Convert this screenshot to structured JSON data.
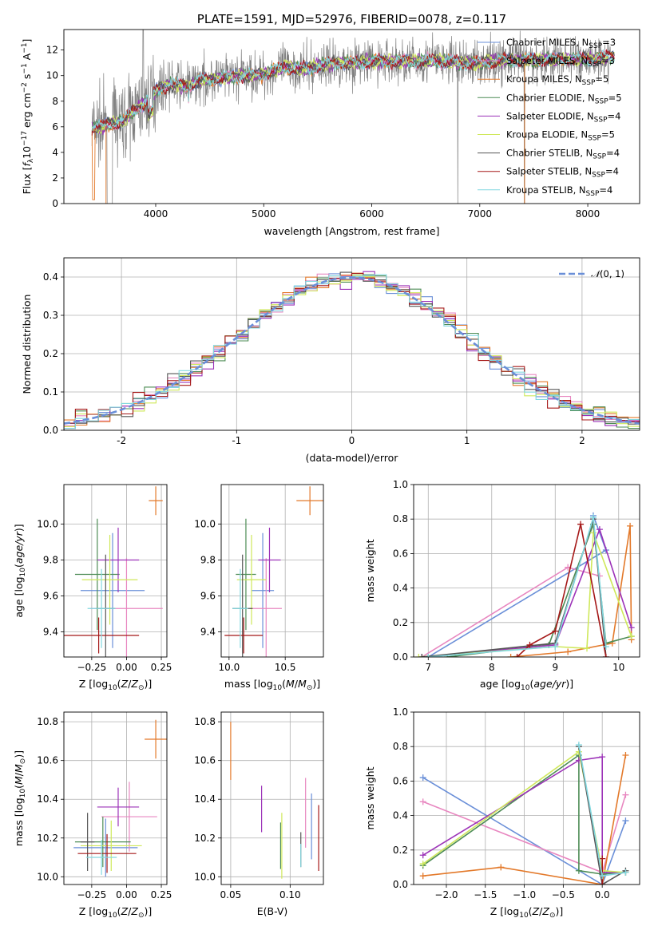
{
  "palette": {
    "Chabrier MILES": "#6a8fd8",
    "Salpeter MILES": "#e887c0",
    "Kroupa MILES": "#e3792a",
    "Chabrier ELODIE": "#4d8c55",
    "Salpeter ELODIE": "#9c33b8",
    "Kroupa ELODIE": "#cfe85a",
    "Chabrier STELIB": "#555555",
    "Salpeter STELIB": "#a51818",
    "Kroupa STELIB": "#83d8e0",
    "data": "#808080"
  },
  "chart_data": [
    {
      "id": "spectrum",
      "type": "line",
      "title": "PLATE=1591, MJD=52976, FIBERID=0078, z=0.117",
      "xlabel": "wavelength [Angstrom, rest frame]",
      "ylabel": "Flux [f_λ10^-17 erg cm^-2 s^-1 A^-1]",
      "xlim": [
        3150,
        8480
      ],
      "ylim": [
        0,
        13.6
      ],
      "xticks": [
        4000,
        5000,
        6000,
        7000,
        8000
      ],
      "yticks": [
        0,
        2,
        4,
        6,
        8,
        10,
        12
      ],
      "grid": false,
      "legend_position": "upper right",
      "legend": [
        {
          "name": "Chabrier MILES",
          "nssp": "3"
        },
        {
          "name": "Salpeter MILES",
          "nssp": "3"
        },
        {
          "name": "Kroupa MILES",
          "nssp": "5"
        },
        {
          "name": "Chabrier ELODIE",
          "nssp": "5"
        },
        {
          "name": "Salpeter ELODIE",
          "nssp": "4"
        },
        {
          "name": "Kroupa ELODIE",
          "nssp": "5"
        },
        {
          "name": "Chabrier STELIB",
          "nssp": "4"
        },
        {
          "name": "Salpeter STELIB",
          "nssp": "4"
        },
        {
          "name": "Kroupa STELIB",
          "nssp": "4"
        }
      ],
      "continuum": [
        [
          3400,
          5.9
        ],
        [
          3500,
          6.0
        ],
        [
          3600,
          6.3
        ],
        [
          3700,
          6.4
        ],
        [
          3800,
          7.3
        ],
        [
          3900,
          7.8
        ],
        [
          4000,
          8.8
        ],
        [
          4100,
          9.3
        ],
        [
          4300,
          9.2
        ],
        [
          4400,
          9.6
        ],
        [
          4600,
          9.8
        ],
        [
          4800,
          10.0
        ],
        [
          5000,
          10.1
        ],
        [
          5200,
          10.7
        ],
        [
          5400,
          10.5
        ],
        [
          5600,
          10.9
        ],
        [
          5800,
          11.0
        ],
        [
          6000,
          11.1
        ],
        [
          6200,
          11.1
        ],
        [
          6400,
          11.1
        ],
        [
          6600,
          11.2
        ],
        [
          6800,
          11.0
        ],
        [
          7000,
          11.0
        ],
        [
          7200,
          11.2
        ],
        [
          7500,
          11.2
        ],
        [
          7800,
          11.3
        ],
        [
          8000,
          11.3
        ],
        [
          8200,
          11.5
        ]
      ],
      "data_range": [
        3410,
        8210
      ],
      "model_range": [
        3410,
        8250
      ]
    },
    {
      "id": "residuals",
      "type": "histogram",
      "xlabel": "(data-model)/error",
      "ylabel": "Normed distribution",
      "xlim": [
        -2.5,
        2.5
      ],
      "ylim": [
        0,
        0.45
      ],
      "xticks": [
        -2,
        -1,
        0,
        1,
        2
      ],
      "yticks": [
        0.0,
        0.1,
        0.2,
        0.3,
        0.4
      ],
      "grid": true,
      "legend_position": "upper right",
      "legend_label": "N(0,1)",
      "bin_width": 0.1
    },
    {
      "id": "age-vs-Z",
      "type": "errorbar",
      "xlabel": "Z [log10(Z/Z☉)]",
      "ylabel": "age  [log10(age/yr)]",
      "xlim": [
        -0.45,
        0.29
      ],
      "ylim": [
        9.26,
        10.22
      ],
      "xticks": [
        -0.25,
        0.0,
        0.25
      ],
      "xticklabels": [
        "−0.25",
        "0.00",
        "0.25"
      ],
      "yticks": [
        9.4,
        9.6,
        9.8,
        10.0
      ],
      "grid": true,
      "points": [
        {
          "model": "Chabrier MILES",
          "x": -0.1,
          "xe": 0.23,
          "y": 9.63,
          "ye": 0.32
        },
        {
          "model": "Salpeter MILES",
          "x": 0.0,
          "xe": 0.26,
          "y": 9.53,
          "ye": 0.28
        },
        {
          "model": "Kroupa MILES",
          "x": 0.21,
          "xe": 0.05,
          "y": 10.13,
          "ye": 0.08
        },
        {
          "model": "Chabrier ELODIE",
          "x": -0.21,
          "xe": 0.16,
          "y": 9.72,
          "ye": 0.31
        },
        {
          "model": "Salpeter ELODIE",
          "x": -0.06,
          "xe": 0.15,
          "y": 9.8,
          "ye": 0.18
        },
        {
          "model": "Kroupa ELODIE",
          "x": -0.12,
          "xe": 0.2,
          "y": 9.69,
          "ye": 0.25
        },
        {
          "model": "Chabrier STELIB",
          "x": -0.15,
          "xe": 0.07,
          "y": 9.53,
          "ye": 0.3
        },
        {
          "model": "Salpeter STELIB",
          "x": -0.2,
          "xe": 0.29,
          "y": 9.38,
          "ye": 0.1
        },
        {
          "model": "Kroupa STELIB",
          "x": -0.18,
          "xe": 0.1,
          "y": 9.53,
          "ye": 0.22
        }
      ]
    },
    {
      "id": "age-vs-mass",
      "type": "errorbar",
      "xlabel": "mass [log10(M/M☉)]",
      "xlim": [
        9.93,
        10.84
      ],
      "ylim": [
        9.26,
        10.22
      ],
      "xticks": [
        10.0,
        10.5
      ],
      "xticklabels": [
        "10.0",
        "10.5"
      ],
      "yticks": [
        9.4,
        9.6,
        9.8,
        10.0
      ],
      "grid": true,
      "points": [
        {
          "model": "Chabrier MILES",
          "x": 10.3,
          "xe": 0.1,
          "y": 9.63,
          "ye": 0.32
        },
        {
          "model": "Salpeter MILES",
          "x": 10.33,
          "xe": 0.14,
          "y": 9.53,
          "ye": 0.28
        },
        {
          "model": "Kroupa MILES",
          "x": 10.72,
          "xe": 0.12,
          "y": 10.13,
          "ye": 0.08
        },
        {
          "model": "Chabrier ELODIE",
          "x": 10.15,
          "xe": 0.09,
          "y": 9.72,
          "ye": 0.31
        },
        {
          "model": "Salpeter ELODIE",
          "x": 10.36,
          "xe": 0.1,
          "y": 9.8,
          "ye": 0.18
        },
        {
          "model": "Kroupa ELODIE",
          "x": 10.2,
          "xe": 0.13,
          "y": 9.69,
          "ye": 0.25
        },
        {
          "model": "Chabrier STELIB",
          "x": 10.12,
          "xe": 0.09,
          "y": 9.53,
          "ye": 0.3
        },
        {
          "model": "Salpeter STELIB",
          "x": 10.13,
          "xe": 0.17,
          "y": 9.38,
          "ye": 0.1
        },
        {
          "model": "Kroupa STELIB",
          "x": 10.1,
          "xe": 0.07,
          "y": 9.53,
          "ye": 0.22
        }
      ]
    },
    {
      "id": "mass-weight-vs-age",
      "type": "line",
      "xlabel": "age  [log10(age/yr)]",
      "ylabel": "mass weight",
      "xlim": [
        6.77,
        10.33
      ],
      "ylim": [
        0,
        1
      ],
      "xticks": [
        7,
        8,
        9,
        10
      ],
      "yticks": [
        0.0,
        0.2,
        0.4,
        0.6,
        0.8,
        1.0
      ],
      "grid": true,
      "series": [
        {
          "model": "Chabrier MILES",
          "points": [
            [
              7.0,
              0.0
            ],
            [
              9.8,
              0.62
            ],
            [
              9.6,
              0.82
            ]
          ]
        },
        {
          "model": "Salpeter MILES",
          "points": [
            [
              6.9,
              0.0
            ],
            [
              9.2,
              0.52
            ],
            [
              9.7,
              0.47
            ]
          ]
        },
        {
          "model": "Kroupa MILES",
          "points": [
            [
              8.3,
              0.0
            ],
            [
              9.2,
              0.03
            ],
            [
              9.9,
              0.08
            ],
            [
              10.18,
              0.76
            ],
            [
              10.2,
              0.1
            ]
          ]
        },
        {
          "model": "Chabrier ELODIE",
          "points": [
            [
              7.3,
              0.0
            ],
            [
              8.9,
              0.07
            ],
            [
              9.6,
              0.77
            ],
            [
              9.8,
              0.08
            ],
            [
              10.2,
              0.12
            ]
          ]
        },
        {
          "model": "Salpeter ELODIE",
          "points": [
            [
              6.9,
              0.0
            ],
            [
              9.0,
              0.07
            ],
            [
              9.7,
              0.74
            ],
            [
              10.2,
              0.17
            ]
          ]
        },
        {
          "model": "Kroupa ELODIE",
          "points": [
            [
              6.85,
              0.0
            ],
            [
              9.0,
              0.06
            ],
            [
              9.5,
              0.05
            ],
            [
              9.6,
              0.72
            ],
            [
              10.2,
              0.12
            ]
          ]
        },
        {
          "model": "Chabrier STELIB",
          "points": [
            [
              6.9,
              0.0
            ],
            [
              9.0,
              0.08
            ],
            [
              9.6,
              0.8
            ],
            [
              9.8,
              0.0
            ]
          ]
        },
        {
          "model": "Salpeter STELIB",
          "points": [
            [
              8.4,
              0.0
            ],
            [
              8.6,
              0.07
            ],
            [
              9.0,
              0.15
            ],
            [
              9.4,
              0.77
            ],
            [
              9.8,
              0.0
            ]
          ]
        },
        {
          "model": "Kroupa STELIB",
          "points": [
            [
              7.0,
              0.0
            ],
            [
              9.0,
              0.06
            ],
            [
              9.6,
              0.81
            ],
            [
              9.8,
              0.06
            ]
          ]
        }
      ]
    },
    {
      "id": "mass-vs-Z",
      "type": "errorbar",
      "xlabel": "Z [log10(Z/Z☉)]",
      "ylabel": "mass [log10(M/M☉)]",
      "xlim": [
        -0.45,
        0.29
      ],
      "ylim": [
        9.96,
        10.85
      ],
      "xticks": [
        -0.25,
        0.0,
        0.25
      ],
      "xticklabels": [
        "−0.25",
        "0.00",
        "0.25"
      ],
      "yticks": [
        10.0,
        10.2,
        10.4,
        10.6,
        10.8
      ],
      "grid": true,
      "points": [
        {
          "model": "Chabrier MILES",
          "x": -0.15,
          "xe": 0.23,
          "y": 10.15,
          "ye": 0.15
        },
        {
          "model": "Salpeter MILES",
          "x": 0.02,
          "xe": 0.2,
          "y": 10.31,
          "ye": 0.18
        },
        {
          "model": "Kroupa MILES",
          "x": 0.21,
          "xe": 0.08,
          "y": 10.71,
          "ye": 0.1
        },
        {
          "model": "Chabrier ELODIE",
          "x": -0.17,
          "xe": 0.2,
          "y": 10.18,
          "ye": 0.13
        },
        {
          "model": "Salpeter ELODIE",
          "x": -0.06,
          "xe": 0.15,
          "y": 10.36,
          "ye": 0.1
        },
        {
          "model": "Kroupa ELODIE",
          "x": -0.11,
          "xe": 0.22,
          "y": 10.16,
          "ye": 0.13
        },
        {
          "model": "Chabrier STELIB",
          "x": -0.28,
          "xe": 0.05,
          "y": 10.18,
          "ye": 0.15
        },
        {
          "model": "Salpeter STELIB",
          "x": -0.14,
          "xe": 0.21,
          "y": 10.12,
          "ye": 0.1
        },
        {
          "model": "Kroupa STELIB",
          "x": -0.18,
          "xe": 0.11,
          "y": 10.1,
          "ye": 0.09
        }
      ]
    },
    {
      "id": "mass-vs-EBV",
      "type": "errorbar",
      "xlabel": "E(B-V)",
      "xlim": [
        0.042,
        0.128
      ],
      "ylim": [
        9.96,
        10.85
      ],
      "xticks": [
        0.05,
        0.1
      ],
      "xticklabels": [
        "0.05",
        "0.10"
      ],
      "yticks": [
        10.0,
        10.2,
        10.4,
        10.6,
        10.8
      ],
      "grid": true,
      "points": [
        {
          "model": "Chabrier MILES",
          "x": 0.118,
          "y": 10.26,
          "ye": 0.17
        },
        {
          "model": "Salpeter MILES",
          "x": 0.113,
          "y": 10.33,
          "ye": 0.18
        },
        {
          "model": "Kroupa MILES",
          "x": 0.05,
          "y": 10.65,
          "ye": 0.15
        },
        {
          "model": "Chabrier ELODIE",
          "x": 0.092,
          "y": 10.16,
          "ye": 0.12
        },
        {
          "model": "Salpeter ELODIE",
          "x": 0.076,
          "y": 10.35,
          "ye": 0.12
        },
        {
          "model": "Kroupa ELODIE",
          "x": 0.093,
          "y": 10.16,
          "ye": 0.17
        },
        {
          "model": "Chabrier STELIB",
          "x": 0.109,
          "y": 10.14,
          "ye": 0.09
        },
        {
          "model": "Salpeter STELIB",
          "x": 0.124,
          "y": 10.2,
          "ye": 0.17
        },
        {
          "model": "Kroupa STELIB",
          "x": 0.109,
          "y": 10.11,
          "ye": 0.06
        }
      ]
    },
    {
      "id": "mass-weight-vs-Z",
      "type": "line",
      "xlabel": "Z [log10(Z/Z☉)]",
      "ylabel": "mass weight",
      "xlim": [
        -2.42,
        0.48
      ],
      "ylim": [
        0,
        1
      ],
      "xticks": [
        -2.0,
        -1.5,
        -1.0,
        -0.5,
        0.0
      ],
      "xticklabels": [
        "−2.0",
        "−1.5",
        "−1.0",
        "−0.5",
        "0.0"
      ],
      "yticks": [
        0.0,
        0.2,
        0.4,
        0.6,
        0.8,
        1.0
      ],
      "grid": true,
      "series": [
        {
          "model": "Chabrier MILES",
          "points": [
            [
              -2.3,
              0.62
            ],
            [
              0.0,
              0.0
            ],
            [
              0.3,
              0.37
            ]
          ]
        },
        {
          "model": "Salpeter MILES",
          "points": [
            [
              -2.3,
              0.48
            ],
            [
              0.0,
              0.07
            ],
            [
              0.3,
              0.52
            ]
          ]
        },
        {
          "model": "Kroupa MILES",
          "points": [
            [
              -2.3,
              0.05
            ],
            [
              -1.3,
              0.1
            ],
            [
              0.0,
              0.0
            ],
            [
              0.3,
              0.75
            ]
          ]
        },
        {
          "model": "Chabrier ELODIE",
          "points": [
            [
              -2.3,
              0.11
            ],
            [
              -0.3,
              0.75
            ],
            [
              -0.3,
              0.08
            ],
            [
              0.0,
              0.06
            ],
            [
              0.3,
              0.07
            ]
          ]
        },
        {
          "model": "Salpeter ELODIE",
          "points": [
            [
              -2.3,
              0.17
            ],
            [
              -0.3,
              0.72
            ],
            [
              0.0,
              0.74
            ],
            [
              0.0,
              0.07
            ],
            [
              0.3,
              0.07
            ]
          ]
        },
        {
          "model": "Kroupa ELODIE",
          "points": [
            [
              -2.3,
              0.12
            ],
            [
              -0.3,
              0.77
            ],
            [
              0.0,
              0.08
            ],
            [
              0.3,
              0.07
            ]
          ]
        },
        {
          "model": "Chabrier STELIB",
          "points": [
            [
              -0.3,
              0.8
            ],
            [
              0.0,
              0.0
            ],
            [
              0.3,
              0.08
            ]
          ]
        },
        {
          "model": "Salpeter STELIB",
          "points": [
            [
              0.0,
              0.15
            ],
            [
              0.0,
              0.0
            ]
          ]
        },
        {
          "model": "Kroupa STELIB",
          "points": [
            [
              -0.3,
              0.81
            ],
            [
              0.0,
              0.05
            ],
            [
              0.3,
              0.07
            ]
          ]
        }
      ]
    }
  ]
}
